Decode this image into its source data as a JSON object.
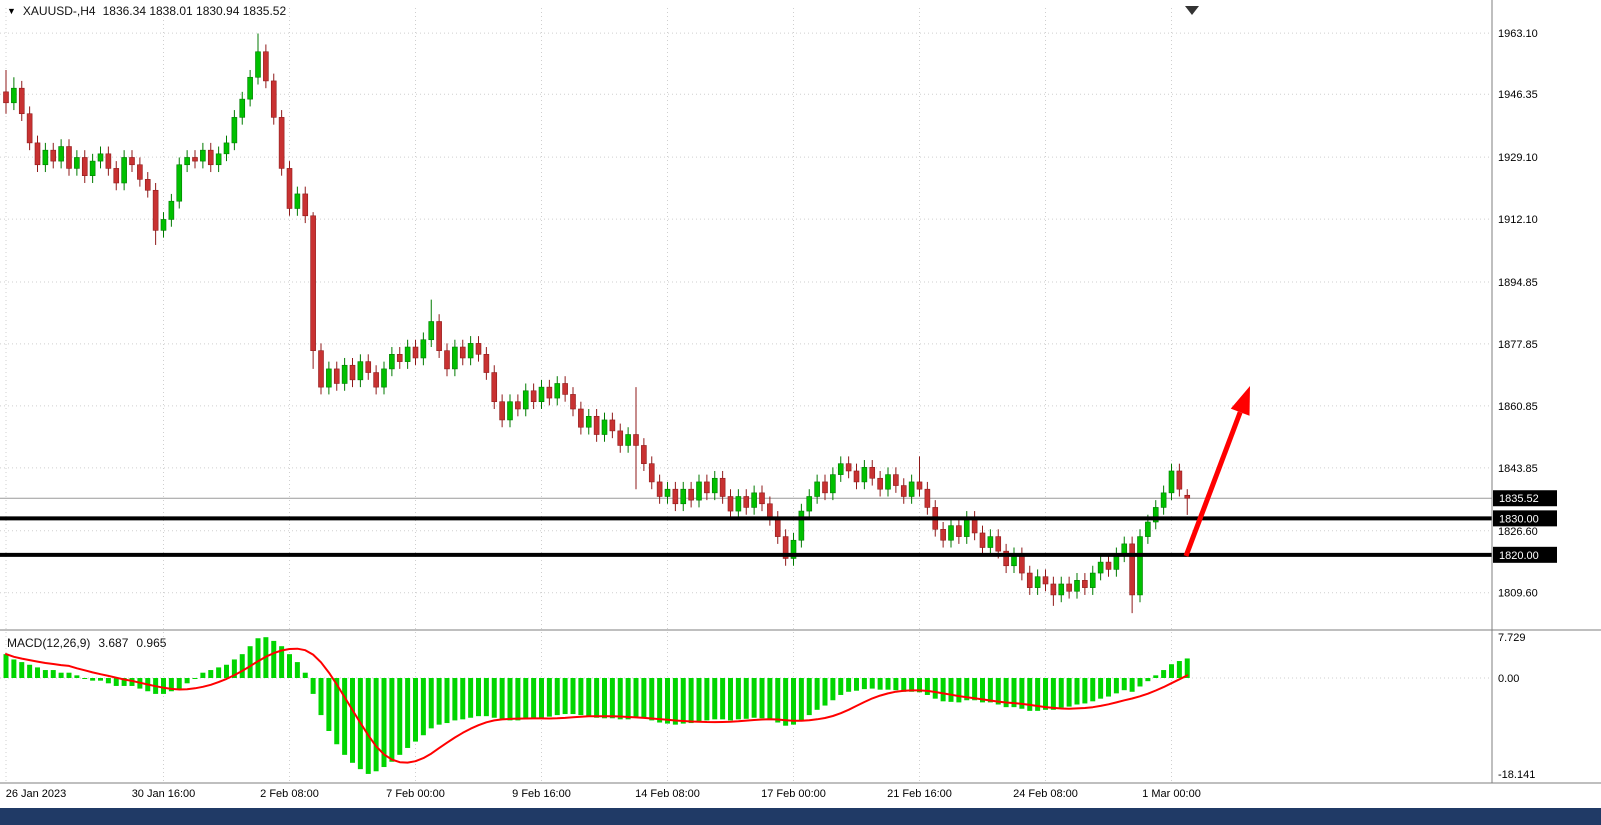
{
  "header": {
    "collapse_icon": "▼",
    "symbol": "XAUUSD-,H4",
    "ohlc": "1836.34 1838.01 1830.94 1835.52"
  },
  "indicator": {
    "name": "MACD(12,26,9)",
    "macd_value": "3.687",
    "signal_value": "0.965"
  },
  "chart_data": {
    "type": "candlestick",
    "symbol": "XAUUSD-",
    "timeframe": "H4",
    "last_bar": {
      "open": 1836.34,
      "high": 1838.01,
      "low": 1830.94,
      "close": 1835.52
    },
    "price_axis": {
      "labels": [
        "1963.10",
        "1946.35",
        "1929.10",
        "1912.10",
        "1894.85",
        "1877.85",
        "1860.85",
        "1843.85",
        "1826.60",
        "1809.60"
      ]
    },
    "time_axis": {
      "labels": [
        "26 Jan 2023",
        "30 Jan 16:00",
        "2 Feb 08:00",
        "7 Feb 00:00",
        "9 Feb 16:00",
        "14 Feb 08:00",
        "17 Feb 00:00",
        "21 Feb 16:00",
        "24 Feb 08:00",
        "1 Mar 00:00"
      ],
      "tick_indices": [
        0,
        20,
        36,
        52,
        68,
        84,
        100,
        116,
        132,
        148
      ]
    },
    "candles": [
      [
        1947,
        1953,
        1941,
        1944
      ],
      [
        1944,
        1951,
        1942,
        1948
      ],
      [
        1948,
        1950,
        1939,
        1941
      ],
      [
        1941,
        1943,
        1931,
        1933
      ],
      [
        1933,
        1935,
        1925,
        1927
      ],
      [
        1927,
        1933,
        1925,
        1931
      ],
      [
        1931,
        1933,
        1926,
        1928
      ],
      [
        1928,
        1934,
        1926,
        1932
      ],
      [
        1932,
        1934,
        1924,
        1926
      ],
      [
        1926,
        1931,
        1924,
        1929
      ],
      [
        1929,
        1931,
        1922,
        1924
      ],
      [
        1924,
        1930,
        1922,
        1928
      ],
      [
        1928,
        1932,
        1926,
        1930
      ],
      [
        1930,
        1932,
        1924,
        1926
      ],
      [
        1926,
        1928,
        1920,
        1922
      ],
      [
        1922,
        1931,
        1920,
        1929
      ],
      [
        1929,
        1931,
        1925,
        1927
      ],
      [
        1927,
        1929,
        1921,
        1923
      ],
      [
        1923,
        1925,
        1918,
        1920
      ],
      [
        1920,
        1922,
        1905,
        1909
      ],
      [
        1909,
        1914,
        1907,
        1912
      ],
      [
        1912,
        1919,
        1910,
        1917
      ],
      [
        1917,
        1929,
        1915,
        1927
      ],
      [
        1927,
        1931,
        1925,
        1929
      ],
      [
        1929,
        1931,
        1926,
        1928
      ],
      [
        1928,
        1933,
        1926,
        1931
      ],
      [
        1931,
        1933,
        1925,
        1927
      ],
      [
        1927,
        1932,
        1925,
        1930
      ],
      [
        1930,
        1935,
        1928,
        1933
      ],
      [
        1933,
        1942,
        1931,
        1940
      ],
      [
        1940,
        1947,
        1938,
        1945
      ],
      [
        1945,
        1953,
        1943,
        1951
      ],
      [
        1951,
        1963,
        1949,
        1958
      ],
      [
        1958,
        1960,
        1948,
        1950
      ],
      [
        1950,
        1952,
        1938,
        1940
      ],
      [
        1940,
        1942,
        1924,
        1926
      ],
      [
        1926,
        1928,
        1913,
        1915
      ],
      [
        1915,
        1921,
        1913,
        1919
      ],
      [
        1919,
        1921,
        1911,
        1913
      ],
      [
        1913,
        1914,
        1871,
        1876
      ],
      [
        1876,
        1878,
        1864,
        1866
      ],
      [
        1866,
        1873,
        1864,
        1871
      ],
      [
        1871,
        1873,
        1865,
        1867
      ],
      [
        1867,
        1874,
        1865,
        1872
      ],
      [
        1872,
        1874,
        1866,
        1868
      ],
      [
        1868,
        1875,
        1866,
        1873
      ],
      [
        1873,
        1875,
        1868,
        1870
      ],
      [
        1870,
        1872,
        1864,
        1866
      ],
      [
        1866,
        1873,
        1864,
        1871
      ],
      [
        1871,
        1877,
        1869,
        1875
      ],
      [
        1875,
        1877,
        1871,
        1873
      ],
      [
        1873,
        1879,
        1871,
        1877
      ],
      [
        1877,
        1879,
        1872,
        1874
      ],
      [
        1874,
        1881,
        1872,
        1879
      ],
      [
        1879,
        1890,
        1877,
        1884
      ],
      [
        1884,
        1886,
        1874,
        1876
      ],
      [
        1876,
        1878,
        1869,
        1871
      ],
      [
        1871,
        1879,
        1869,
        1877
      ],
      [
        1877,
        1879,
        1872,
        1874
      ],
      [
        1874,
        1880,
        1872,
        1878
      ],
      [
        1878,
        1880,
        1873,
        1875
      ],
      [
        1875,
        1877,
        1868,
        1870
      ],
      [
        1870,
        1872,
        1860,
        1862
      ],
      [
        1862,
        1864,
        1855,
        1857
      ],
      [
        1857,
        1864,
        1855,
        1862
      ],
      [
        1862,
        1864,
        1858,
        1860
      ],
      [
        1860,
        1867,
        1858,
        1865
      ],
      [
        1865,
        1867,
        1860,
        1862
      ],
      [
        1862,
        1868,
        1860,
        1866
      ],
      [
        1866,
        1868,
        1861,
        1863
      ],
      [
        1863,
        1869,
        1861,
        1867
      ],
      [
        1867,
        1869,
        1862,
        1864
      ],
      [
        1864,
        1866,
        1858,
        1860
      ],
      [
        1860,
        1862,
        1853,
        1855
      ],
      [
        1855,
        1860,
        1853,
        1858
      ],
      [
        1858,
        1860,
        1851,
        1853
      ],
      [
        1853,
        1859,
        1851,
        1857
      ],
      [
        1857,
        1859,
        1852,
        1854
      ],
      [
        1854,
        1856,
        1848,
        1850
      ],
      [
        1850,
        1855,
        1848,
        1853
      ],
      [
        1853,
        1866,
        1838,
        1850
      ],
      [
        1850,
        1852,
        1843,
        1845
      ],
      [
        1845,
        1847,
        1838,
        1840
      ],
      [
        1840,
        1842,
        1834,
        1836
      ],
      [
        1836,
        1840,
        1834,
        1838
      ],
      [
        1838,
        1840,
        1832,
        1834
      ],
      [
        1834,
        1840,
        1832,
        1838
      ],
      [
        1838,
        1840,
        1833,
        1835
      ],
      [
        1835,
        1842,
        1833,
        1840
      ],
      [
        1840,
        1842,
        1835,
        1837
      ],
      [
        1837,
        1843,
        1835,
        1841
      ],
      [
        1841,
        1843,
        1834,
        1836
      ],
      [
        1836,
        1838,
        1830,
        1832
      ],
      [
        1832,
        1838,
        1830,
        1836
      ],
      [
        1836,
        1838,
        1831,
        1833
      ],
      [
        1833,
        1839,
        1831,
        1837
      ],
      [
        1837,
        1839,
        1832,
        1834
      ],
      [
        1834,
        1836,
        1828,
        1830
      ],
      [
        1830,
        1832,
        1823,
        1825
      ],
      [
        1825,
        1827,
        1817,
        1819
      ],
      [
        1819,
        1826,
        1817,
        1824
      ],
      [
        1824,
        1834,
        1822,
        1832
      ],
      [
        1832,
        1838,
        1830,
        1836
      ],
      [
        1836,
        1842,
        1834,
        1840
      ],
      [
        1840,
        1842,
        1835,
        1837
      ],
      [
        1837,
        1844,
        1835,
        1842
      ],
      [
        1842,
        1847,
        1840,
        1845
      ],
      [
        1845,
        1847,
        1841,
        1843
      ],
      [
        1843,
        1845,
        1838,
        1840
      ],
      [
        1840,
        1846,
        1838,
        1844
      ],
      [
        1844,
        1846,
        1839,
        1841
      ],
      [
        1841,
        1843,
        1836,
        1838
      ],
      [
        1838,
        1844,
        1836,
        1842
      ],
      [
        1842,
        1844,
        1837,
        1839
      ],
      [
        1839,
        1841,
        1834,
        1836
      ],
      [
        1836,
        1842,
        1834,
        1840
      ],
      [
        1840,
        1847,
        1836,
        1838
      ],
      [
        1838,
        1840,
        1831,
        1833
      ],
      [
        1833,
        1835,
        1825,
        1827
      ],
      [
        1827,
        1829,
        1822,
        1824
      ],
      [
        1824,
        1830,
        1822,
        1828
      ],
      [
        1828,
        1830,
        1823,
        1825
      ],
      [
        1825,
        1832,
        1823,
        1830
      ],
      [
        1830,
        1832,
        1824,
        1826
      ],
      [
        1826,
        1828,
        1820,
        1822
      ],
      [
        1822,
        1827,
        1820,
        1825
      ],
      [
        1825,
        1827,
        1819,
        1821
      ],
      [
        1821,
        1823,
        1815,
        1817
      ],
      [
        1817,
        1822,
        1815,
        1820
      ],
      [
        1820,
        1822,
        1813,
        1815
      ],
      [
        1815,
        1817,
        1809,
        1811
      ],
      [
        1811,
        1816,
        1809,
        1814
      ],
      [
        1814,
        1816,
        1810,
        1812
      ],
      [
        1812,
        1814,
        1806,
        1809
      ],
      [
        1809,
        1814,
        1807,
        1812
      ],
      [
        1812,
        1814,
        1808,
        1810
      ],
      [
        1810,
        1815,
        1808,
        1813
      ],
      [
        1813,
        1815,
        1809,
        1811
      ],
      [
        1811,
        1817,
        1809,
        1815
      ],
      [
        1815,
        1820,
        1813,
        1818
      ],
      [
        1818,
        1820,
        1814,
        1816
      ],
      [
        1816,
        1822,
        1814,
        1820
      ],
      [
        1820,
        1825,
        1818,
        1823
      ],
      [
        1823,
        1825,
        1804,
        1809
      ],
      [
        1809,
        1827,
        1807,
        1825
      ],
      [
        1825,
        1831,
        1823,
        1829
      ],
      [
        1829,
        1835,
        1827,
        1833
      ],
      [
        1833,
        1839,
        1831,
        1837
      ],
      [
        1837,
        1845,
        1835,
        1843
      ],
      [
        1843,
        1845,
        1836,
        1838
      ],
      [
        1836.34,
        1838.01,
        1830.94,
        1835.52
      ]
    ],
    "hlines": [
      {
        "price": 1830.0,
        "label": "1830.00"
      },
      {
        "price": 1820.0,
        "label": "1820.00"
      }
    ],
    "price_line": {
      "price": 1835.52,
      "label": "1835.52"
    },
    "macd": {
      "label": "MACD(12,26,9)",
      "macd_value": 3.687,
      "signal_value": 0.965,
      "signal_period": 9,
      "axis_labels": [
        "7.729",
        "0.00",
        "-18.141"
      ],
      "values": [
        4.5,
        3.5,
        3.0,
        2.5,
        2.0,
        1.5,
        1.5,
        1.0,
        1.0,
        0.5,
        0.0,
        -0.5,
        -0.5,
        -1.0,
        -1.5,
        -1.5,
        -1.5,
        -2.0,
        -2.5,
        -3.0,
        -3.0,
        -2.5,
        -2.0,
        -1.0,
        0.0,
        1.0,
        1.5,
        2.0,
        2.5,
        3.5,
        4.5,
        6.0,
        7.5,
        7.7,
        7.0,
        6.0,
        4.5,
        3.0,
        1.0,
        -3.0,
        -7.0,
        -10.0,
        -12.5,
        -14.5,
        -16.0,
        -17.2,
        -18.1,
        -17.6,
        -16.8,
        -15.8,
        -14.5,
        -13.2,
        -12.0,
        -10.8,
        -9.5,
        -8.8,
        -8.5,
        -8.0,
        -7.8,
        -7.5,
        -7.2,
        -7.2,
        -7.5,
        -7.8,
        -8.0,
        -8.0,
        -7.8,
        -7.6,
        -7.5,
        -7.3,
        -7.0,
        -6.8,
        -6.8,
        -7.0,
        -7.3,
        -7.5,
        -7.6,
        -7.6,
        -7.8,
        -7.8,
        -7.5,
        -7.6,
        -8.0,
        -8.4,
        -8.6,
        -8.8,
        -8.6,
        -8.5,
        -8.2,
        -8.0,
        -7.8,
        -7.8,
        -8.0,
        -7.8,
        -7.7,
        -7.5,
        -7.6,
        -7.9,
        -8.4,
        -9.0,
        -8.8,
        -8.0,
        -7.0,
        -6.0,
        -5.2,
        -4.2,
        -3.2,
        -2.6,
        -2.4,
        -2.1,
        -2.0,
        -2.2,
        -2.2,
        -2.3,
        -2.6,
        -2.6,
        -2.7,
        -3.2,
        -3.9,
        -4.4,
        -4.5,
        -4.6,
        -4.2,
        -4.2,
        -4.6,
        -4.6,
        -5.0,
        -5.5,
        -5.5,
        -5.8,
        -6.2,
        -6.2,
        -6.0,
        -6.0,
        -5.6,
        -5.4,
        -5.0,
        -4.8,
        -4.4,
        -3.9,
        -3.5,
        -2.9,
        -2.3,
        -2.6,
        -1.6,
        -0.6,
        0.5,
        1.5,
        2.6,
        3.2,
        3.687
      ]
    },
    "arrow": {
      "from": [
        1186,
        556
      ],
      "to": [
        1250,
        386
      ],
      "color": "#FF0000"
    },
    "colors": {
      "bull": "#00C000",
      "bull_stroke": "#007A00",
      "bear": "#C83232",
      "bear_stroke": "#8F1A1A",
      "hist": "#00D500",
      "signal": "#FF0000",
      "grid": "#CFCFCF",
      "hline": "#000000",
      "price_line": "#9A9A9A",
      "tag_bg": "#000000",
      "tag_fg": "#FFFFFF",
      "separator": "#7F7F7F",
      "axis_text": "#000000",
      "bottom_bar": "#203A66"
    }
  }
}
